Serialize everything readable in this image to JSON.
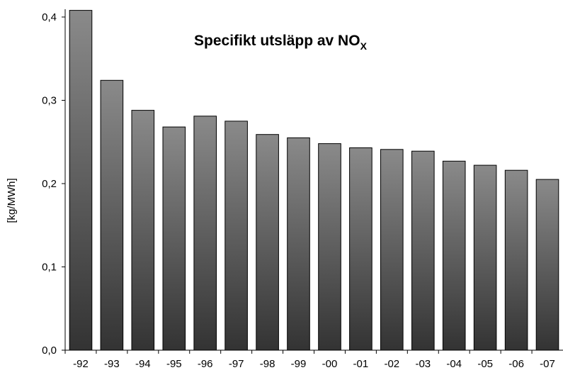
{
  "chart_data": {
    "type": "bar",
    "title_main": "Specifikt utsläpp av NO",
    "title_subscript": "X",
    "xlabel": "",
    "ylabel": "[kg/MWh]",
    "categories": [
      "-92",
      "-93",
      "-94",
      "-95",
      "-96",
      "-97",
      "-98",
      "-99",
      "-00",
      "-01",
      "-02",
      "-03",
      "-04",
      "-05",
      "-06",
      "-07"
    ],
    "values": [
      0.408,
      0.324,
      0.288,
      0.268,
      0.281,
      0.275,
      0.259,
      0.255,
      0.248,
      0.243,
      0.241,
      0.239,
      0.227,
      0.222,
      0.216,
      0.205
    ],
    "ylim": [
      0,
      0.4
    ],
    "yticks": [
      "0,0",
      "0,1",
      "0,2",
      "0,3",
      "0,4"
    ],
    "grid": false,
    "legend": "none",
    "colors": {
      "bar_top": "#8a8a8a",
      "bar_bottom": "#333333",
      "bar_edge": "#000000"
    }
  }
}
